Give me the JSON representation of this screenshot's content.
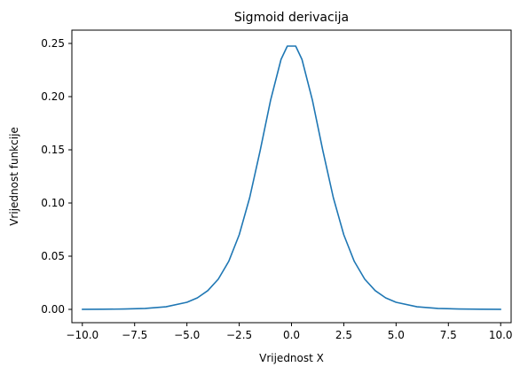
{
  "chart_data": {
    "type": "line",
    "title": "Sigmoid derivacija",
    "xlabel": "Vrijednost X",
    "ylabel": "Vrijednost funkcije",
    "xlim": [
      -10.5,
      10.5
    ],
    "ylim": [
      -0.0125,
      0.2625
    ],
    "grid": false,
    "legend": "none",
    "x_ticks": [
      -10.0,
      -7.5,
      -5.0,
      -2.5,
      0.0,
      2.5,
      5.0,
      7.5,
      10.0
    ],
    "x_tick_labels": [
      "−10.0",
      "−7.5",
      "−5.0",
      "−2.5",
      "0.0",
      "2.5",
      "5.0",
      "7.5",
      "10.0"
    ],
    "y_ticks": [
      0.0,
      0.05,
      0.1,
      0.15,
      0.2,
      0.25
    ],
    "y_tick_labels": [
      "0.00",
      "0.05",
      "0.10",
      "0.15",
      "0.20",
      "0.25"
    ],
    "series": [
      {
        "color": "#1f77b4",
        "x": [
          -10.0,
          -9.0,
          -8.0,
          -7.0,
          -6.0,
          -5.0,
          -4.5,
          -4.0,
          -3.5,
          -3.0,
          -2.5,
          -2.0,
          -1.5,
          -1.0,
          -0.5,
          -0.2,
          0.2,
          0.5,
          1.0,
          1.5,
          2.0,
          2.5,
          3.0,
          3.5,
          4.0,
          4.5,
          5.0,
          6.0,
          7.0,
          8.0,
          9.0,
          10.0
        ],
        "values": [
          5e-05,
          0.00012,
          0.00034,
          0.00091,
          0.00247,
          0.00665,
          0.01085,
          0.01766,
          0.02845,
          0.04518,
          0.0701,
          0.10499,
          0.14914,
          0.19661,
          0.235,
          0.2475,
          0.2475,
          0.235,
          0.19661,
          0.14914,
          0.10499,
          0.0701,
          0.04518,
          0.02845,
          0.01766,
          0.01085,
          0.00665,
          0.00247,
          0.00091,
          0.00034,
          0.00012,
          5e-05
        ]
      }
    ]
  }
}
